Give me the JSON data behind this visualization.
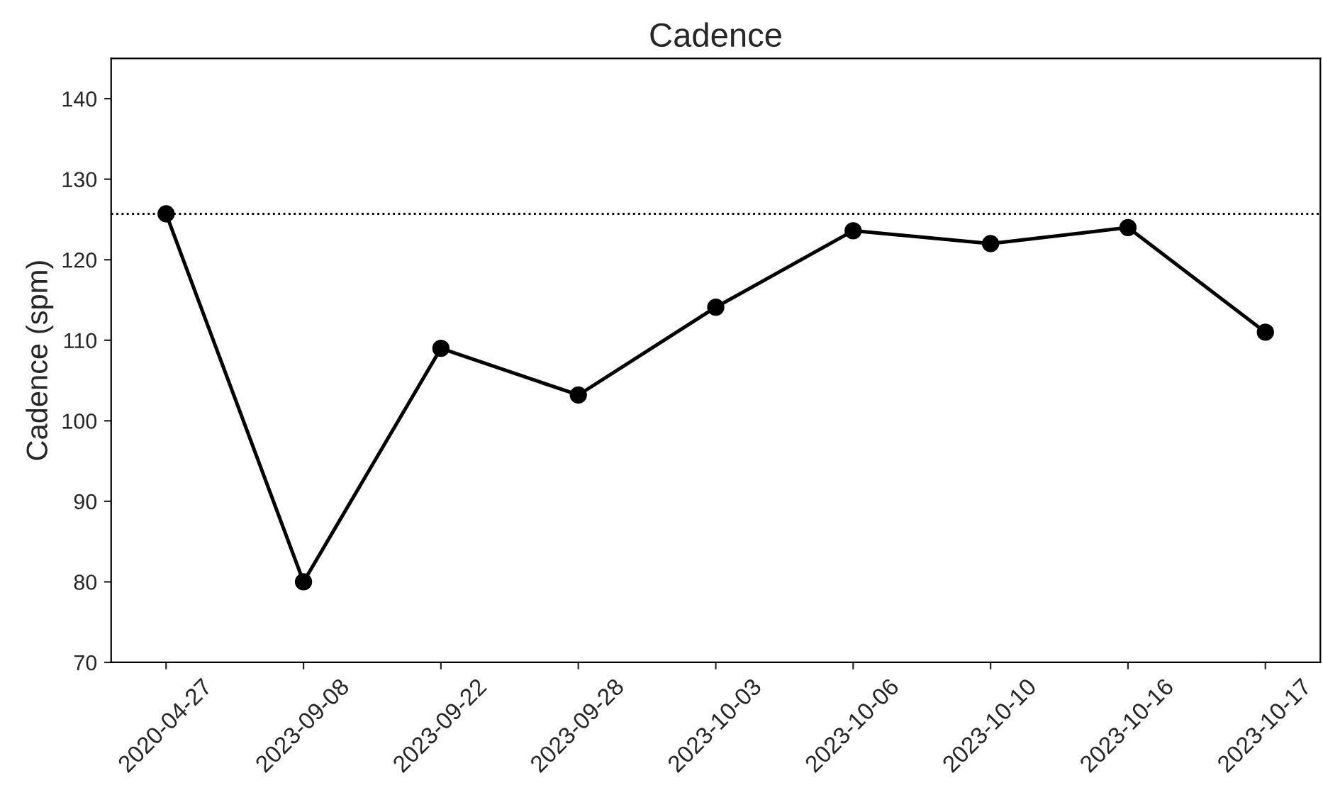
{
  "chart_data": {
    "type": "line",
    "title": "Cadence",
    "ylabel": "Cadence (spm)",
    "categories": [
      "2020-04-27",
      "2023-09-08",
      "2023-09-22",
      "2023-09-28",
      "2023-10-03",
      "2023-10-06",
      "2023-10-10",
      "2023-10-16",
      "2023-10-17"
    ],
    "series": [
      {
        "color": "#000000",
        "values": [
          125.7,
          80,
          109,
          103.2,
          114.1,
          123.6,
          122,
          124,
          111
        ]
      }
    ],
    "ylim": [
      70,
      145
    ],
    "yticks": [
      70,
      80,
      90,
      100,
      110,
      120,
      130,
      140
    ],
    "ref_lines": [
      {
        "axis": "y",
        "value": 125.7,
        "color": "#000000",
        "line_style": "dotted"
      }
    ],
    "grid": false,
    "legend": false,
    "marker": "circle",
    "line_style": "solid"
  }
}
